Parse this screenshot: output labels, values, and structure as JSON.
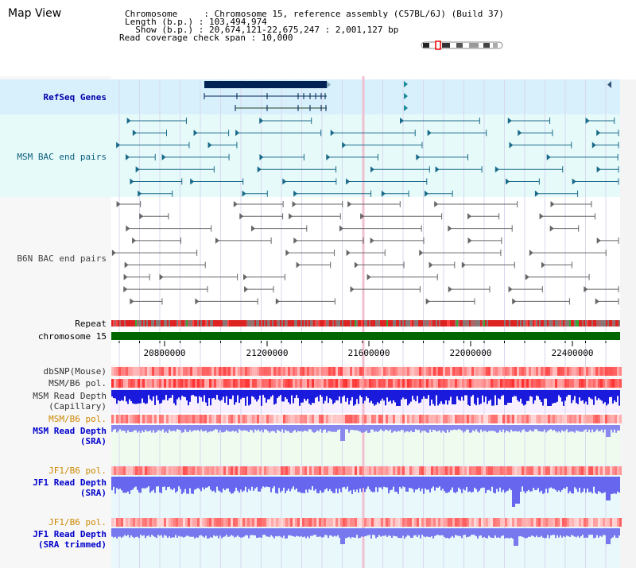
{
  "title": "Map View",
  "info": {
    "line1": "Chromosome     : Chromosome 15, reference assembly (C57BL/6J) (Build 37)",
    "line2": "Length (b.p.) : 103,494,974",
    "line3": "  Show (b.p.) : 20,674,121-22,675,247 : 2,001,127 bp",
    "line4": "Read coverage check span : 10,000"
  },
  "tracks": {
    "refseq": "RefSeq Genes",
    "msm_bac": "MSM BAC end pairs",
    "b6n_bac": "B6N BAC end pairs",
    "repeat": "Repeat",
    "chromosome": "chromosome 15",
    "dbsnp": "dbSNP(Mouse)",
    "msm_b6_pol_1": "MSM/B6 pol.",
    "msm_depth_cap_1": "MSM Read Depth",
    "msm_depth_cap_2": "(Capillary)",
    "msm_b6_pol_2": "MSM/B6 pol.",
    "msm_depth_sra_1": "MSM Read Depth",
    "msm_depth_sra_2": "(SRA)",
    "jf1_b6_pol_1": "JF1/B6 pol.",
    "jf1_depth_sra_1": "JF1 Read Depth",
    "jf1_depth_sra_2": "(SRA)",
    "jf1_b6_pol_2": "JF1/B6 pol.",
    "jf1_depth_trim_1": "JF1 Read Depth",
    "jf1_depth_trim_2": "(SRA trimmed)"
  },
  "axis": {
    "ticks": [
      "20800000",
      "21200000",
      "21600000",
      "22000000",
      "22400000"
    ]
  },
  "colors": {
    "refseq_bg": "#d8f0fb",
    "bac_bg": "#e6fafa",
    "pol_red": "#ee2222",
    "depth_blue": "#2222ee",
    "chrom_green": "#006600",
    "gene_navy": "#002255"
  }
}
